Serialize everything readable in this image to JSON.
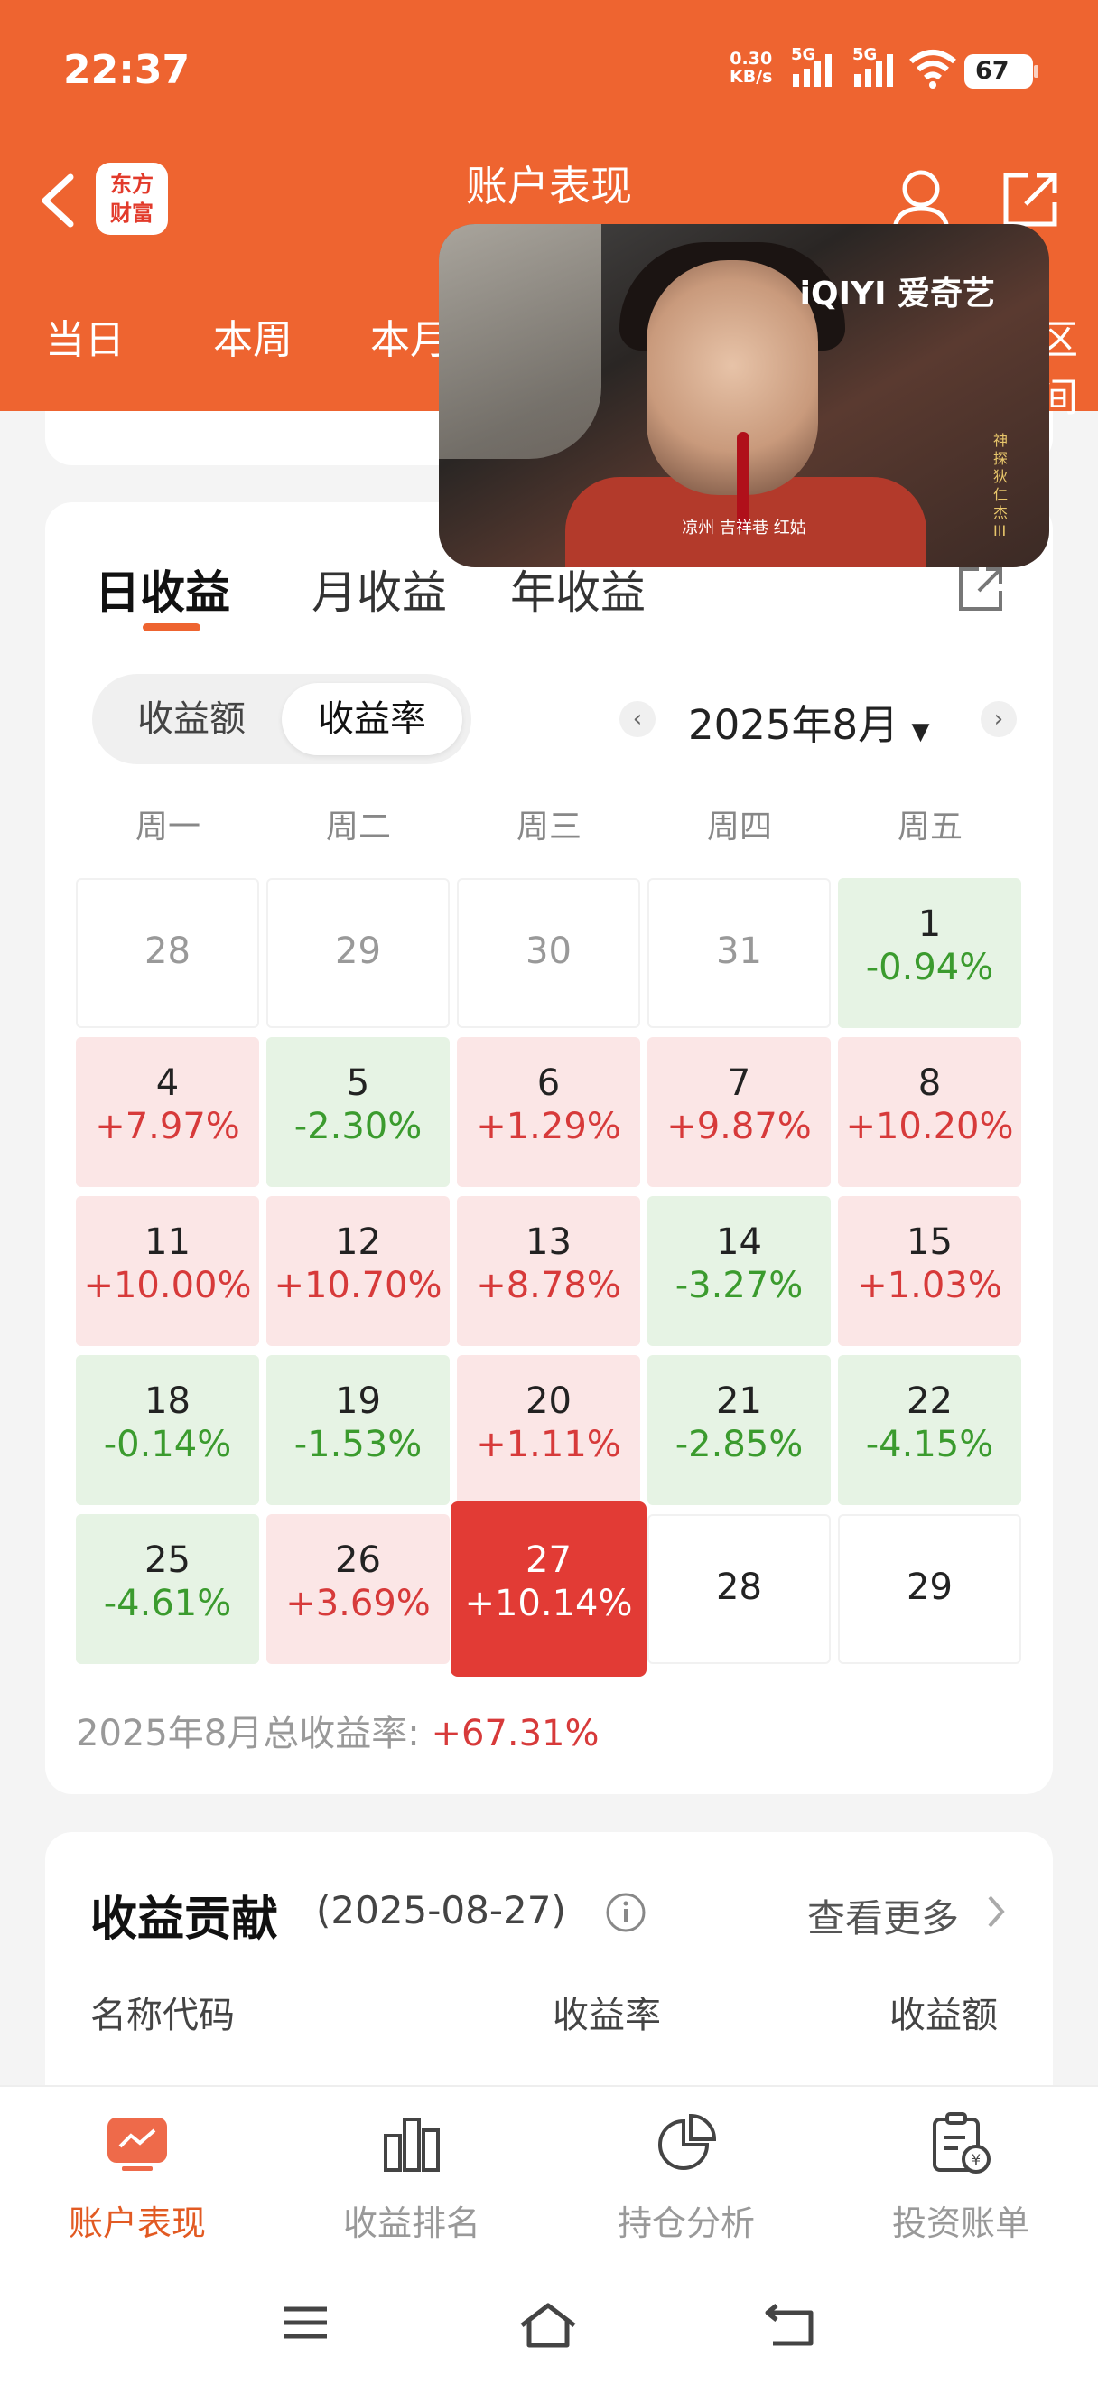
{
  "status": {
    "time": "22:37",
    "net_speed_value": "0.30",
    "net_speed_unit": "KB/s",
    "signal1_label": "5G",
    "signal2_label": "5G",
    "battery": "67"
  },
  "header": {
    "title": "账户表现",
    "logo_line1": "东方",
    "logo_line2": "财富"
  },
  "period_tabs": [
    "当日",
    "本周",
    "本月",
    "区间"
  ],
  "video_overlay": {
    "brand": "iQIYI 爱奇艺",
    "caption": "凉州  吉祥巷  红姑",
    "vertical_text": "神探狄仁杰III"
  },
  "income_tabs": [
    "日收益",
    "月收益",
    "年收益"
  ],
  "toggle": {
    "options": [
      "收益额",
      "收益率"
    ],
    "selected": "收益率"
  },
  "month_nav": {
    "prev": "‹",
    "label": "2025年8月",
    "next": "›"
  },
  "weekdays": [
    "周一",
    "周二",
    "周三",
    "周四",
    "周五"
  ],
  "calendar": [
    [
      {
        "d": "28",
        "t": "muted"
      },
      {
        "d": "29",
        "t": "muted"
      },
      {
        "d": "30",
        "t": "muted"
      },
      {
        "d": "31",
        "t": "muted"
      },
      {
        "d": "1",
        "r": "-0.94%",
        "t": "down"
      }
    ],
    [
      {
        "d": "4",
        "r": "+7.97%",
        "t": "up"
      },
      {
        "d": "5",
        "r": "-2.30%",
        "t": "down"
      },
      {
        "d": "6",
        "r": "+1.29%",
        "t": "up"
      },
      {
        "d": "7",
        "r": "+9.87%",
        "t": "up"
      },
      {
        "d": "8",
        "r": "+10.20%",
        "t": "up"
      }
    ],
    [
      {
        "d": "11",
        "r": "+10.00%",
        "t": "up"
      },
      {
        "d": "12",
        "r": "+10.70%",
        "t": "up"
      },
      {
        "d": "13",
        "r": "+8.78%",
        "t": "up"
      },
      {
        "d": "14",
        "r": "-3.27%",
        "t": "down"
      },
      {
        "d": "15",
        "r": "+1.03%",
        "t": "up"
      }
    ],
    [
      {
        "d": "18",
        "r": "-0.14%",
        "t": "down"
      },
      {
        "d": "19",
        "r": "-1.53%",
        "t": "down"
      },
      {
        "d": "20",
        "r": "+1.11%",
        "t": "up"
      },
      {
        "d": "21",
        "r": "-2.85%",
        "t": "down"
      },
      {
        "d": "22",
        "r": "-4.15%",
        "t": "down"
      }
    ],
    [
      {
        "d": "25",
        "r": "-4.61%",
        "t": "down"
      },
      {
        "d": "26",
        "r": "+3.69%",
        "t": "up"
      },
      {
        "d": "27",
        "r": "+10.14%",
        "t": "today"
      },
      {
        "d": "28",
        "t": "blank"
      },
      {
        "d": "29",
        "t": "blank"
      }
    ]
  ],
  "summary": {
    "label": "2025年8月总收益率: ",
    "value": "+67.31%"
  },
  "contribution": {
    "title": "收益贡献",
    "date": "(2025-08-27)",
    "more": "查看更多",
    "columns": [
      "名称代码",
      "收益率",
      "收益额"
    ]
  },
  "bottom_nav": [
    {
      "label": "账户表现",
      "icon": "chart-screen-icon"
    },
    {
      "label": "收益排名",
      "icon": "bar-chart-icon"
    },
    {
      "label": "持仓分析",
      "icon": "pie-chart-icon"
    },
    {
      "label": "投资账单",
      "icon": "bill-icon"
    }
  ],
  "colors": {
    "brand": "#ee6430",
    "up": "#d73a3a",
    "down": "#3b9b2e",
    "today": "#e23b35"
  }
}
